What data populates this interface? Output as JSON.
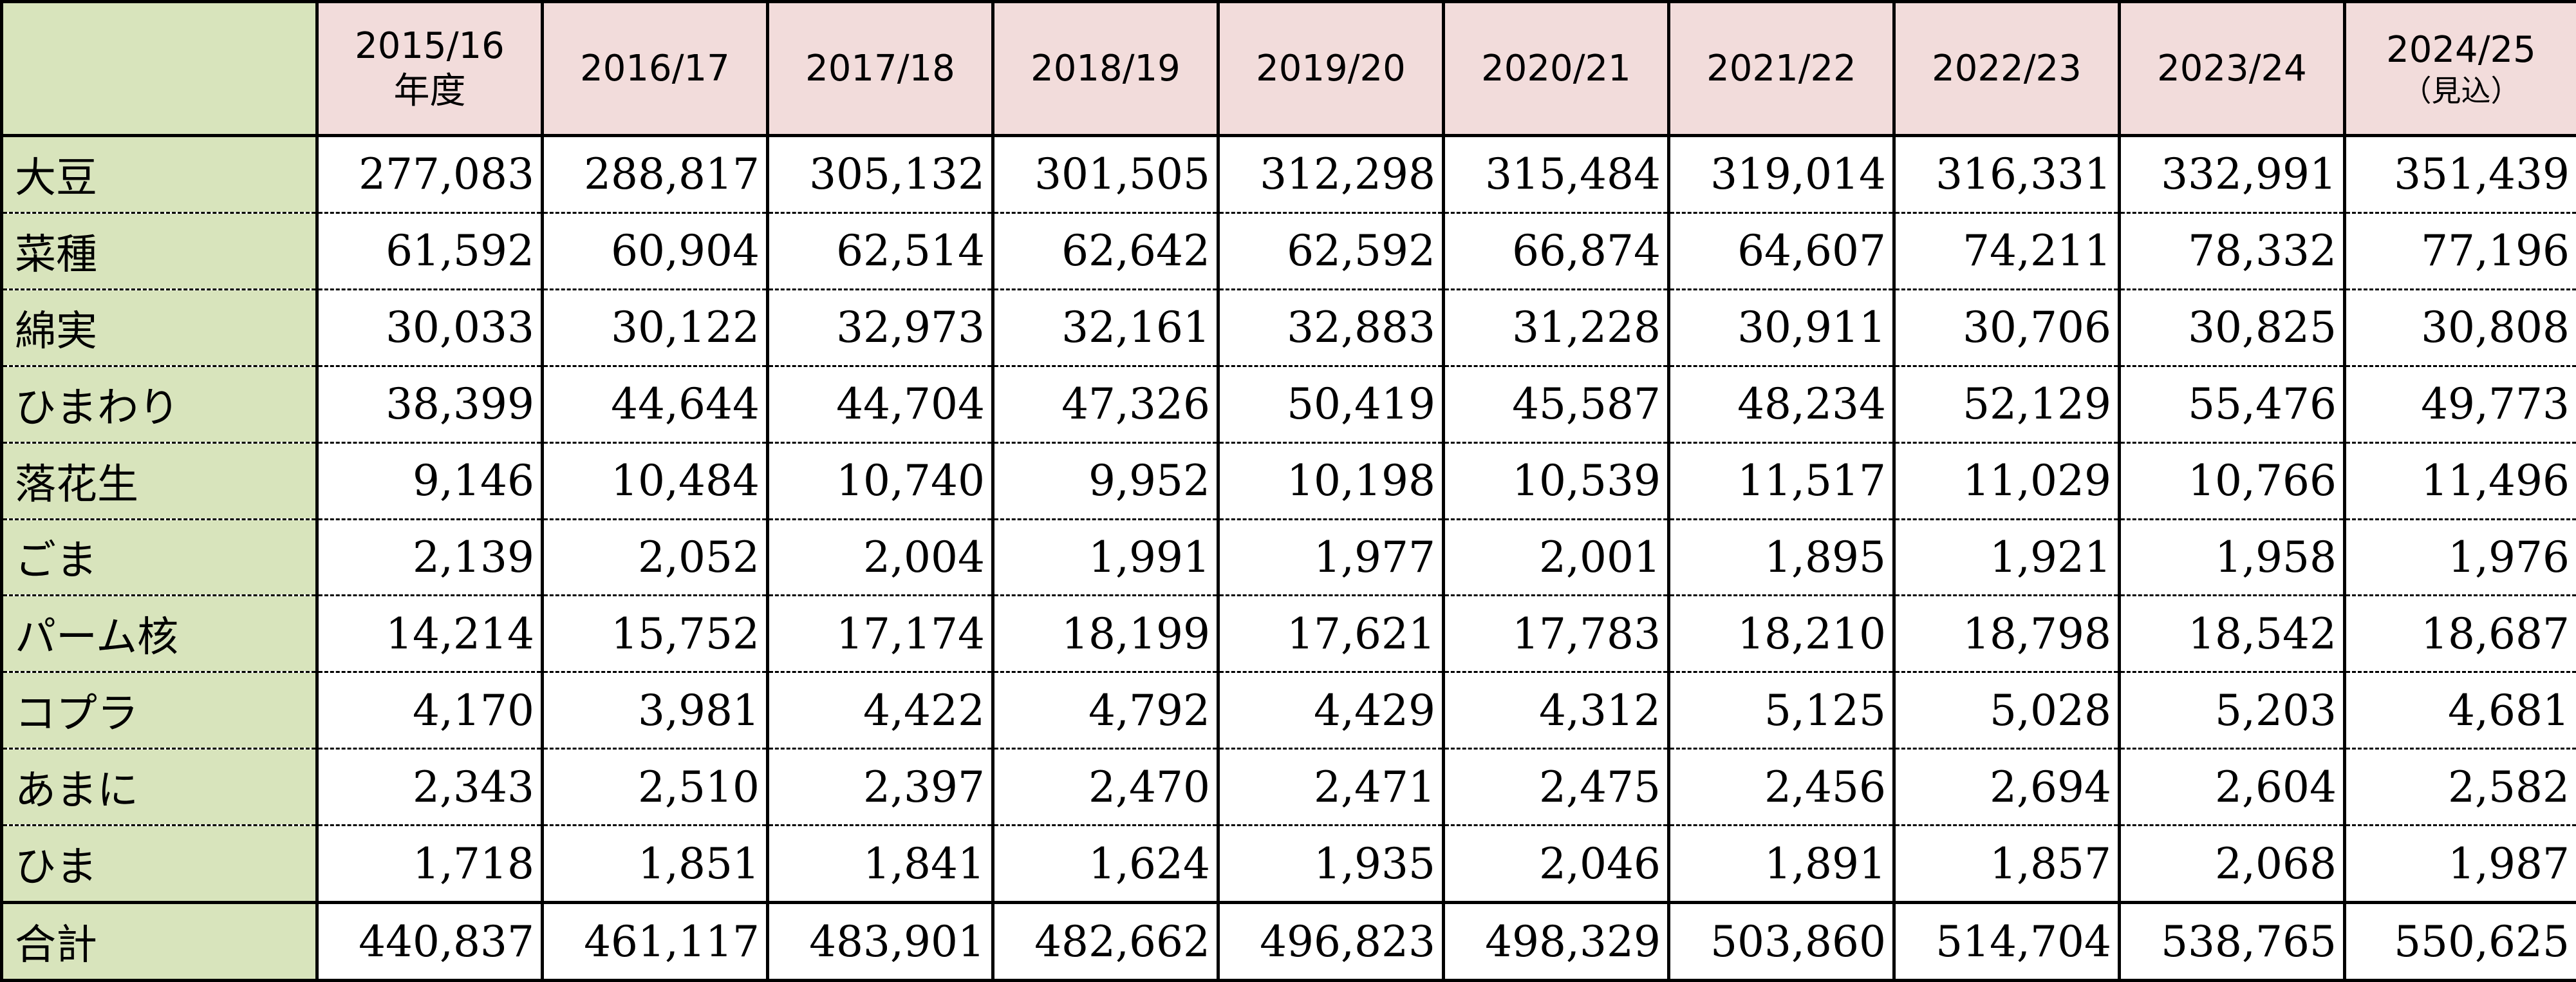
{
  "table": {
    "headers": [
      {
        "line1": "2015/16",
        "line2": "年度"
      },
      {
        "line1": "2016/17",
        "line2": ""
      },
      {
        "line1": "2017/18",
        "line2": ""
      },
      {
        "line1": "2018/19",
        "line2": ""
      },
      {
        "line1": "2019/20",
        "line2": ""
      },
      {
        "line1": "2020/21",
        "line2": ""
      },
      {
        "line1": "2021/22",
        "line2": ""
      },
      {
        "line1": "2022/23",
        "line2": ""
      },
      {
        "line1": "2023/24",
        "line2": ""
      },
      {
        "line1": "2024/25",
        "line2": "（見込）"
      }
    ],
    "rows": [
      {
        "label": "大豆",
        "values": [
          "277,083",
          "288,817",
          "305,132",
          "301,505",
          "312,298",
          "315,484",
          "319,014",
          "316,331",
          "332,991",
          "351,439"
        ]
      },
      {
        "label": "菜種",
        "values": [
          "61,592",
          "60,904",
          "62,514",
          "62,642",
          "62,592",
          "66,874",
          "64,607",
          "74,211",
          "78,332",
          "77,196"
        ]
      },
      {
        "label": "綿実",
        "values": [
          "30,033",
          "30,122",
          "32,973",
          "32,161",
          "32,883",
          "31,228",
          "30,911",
          "30,706",
          "30,825",
          "30,808"
        ]
      },
      {
        "label": "ひまわり",
        "values": [
          "38,399",
          "44,644",
          "44,704",
          "47,326",
          "50,419",
          "45,587",
          "48,234",
          "52,129",
          "55,476",
          "49,773"
        ]
      },
      {
        "label": "落花生",
        "values": [
          "9,146",
          "10,484",
          "10,740",
          "9,952",
          "10,198",
          "10,539",
          "11,517",
          "11,029",
          "10,766",
          "11,496"
        ]
      },
      {
        "label": "ごま",
        "values": [
          "2,139",
          "2,052",
          "2,004",
          "1,991",
          "1,977",
          "2,001",
          "1,895",
          "1,921",
          "1,958",
          "1,976"
        ]
      },
      {
        "label": "パーム核",
        "values": [
          "14,214",
          "15,752",
          "17,174",
          "18,199",
          "17,621",
          "17,783",
          "18,210",
          "18,798",
          "18,542",
          "18,687"
        ]
      },
      {
        "label": "コプラ",
        "values": [
          "4,170",
          "3,981",
          "4,422",
          "4,792",
          "4,429",
          "4,312",
          "5,125",
          "5,028",
          "5,203",
          "4,681"
        ]
      },
      {
        "label": "あまに",
        "values": [
          "2,343",
          "2,510",
          "2,397",
          "2,470",
          "2,471",
          "2,475",
          "2,456",
          "2,694",
          "2,604",
          "2,582"
        ]
      },
      {
        "label": "ひま",
        "values": [
          "1,718",
          "1,851",
          "1,841",
          "1,624",
          "1,935",
          "2,046",
          "1,891",
          "1,857",
          "2,068",
          "1,987"
        ]
      },
      {
        "label": "合計",
        "values": [
          "440,837",
          "461,117",
          "483,901",
          "482,662",
          "496,823",
          "498,329",
          "503,860",
          "514,704",
          "538,765",
          "550,625"
        ],
        "total": true
      }
    ]
  },
  "colors": {
    "header_bg": "#f2dcdb",
    "label_bg": "#d8e4bc",
    "border": "#000000"
  }
}
